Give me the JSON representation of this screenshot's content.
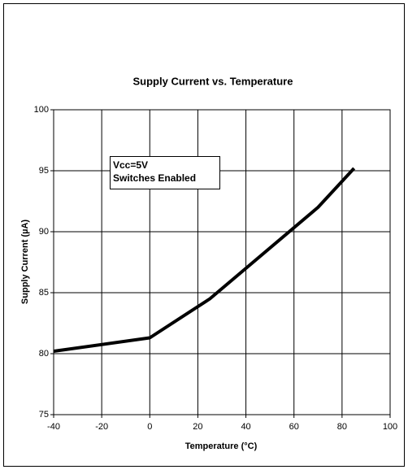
{
  "chart_data": {
    "type": "line",
    "title": "Supply Current vs. Temperature",
    "x_label": "Temperature (°C)",
    "y_label": "Supply Current (µA)",
    "annotation": [
      "Vcc=5V",
      "Switches Enabled"
    ],
    "x": [
      -40,
      0,
      25,
      70,
      85
    ],
    "series": [
      {
        "name": "Supply Current",
        "color": "#000000",
        "values": [
          80.2,
          81.3,
          84.5,
          92,
          95.2
        ]
      }
    ],
    "xlim": [
      -40,
      100
    ],
    "xticks": [
      -40,
      -20,
      0,
      20,
      40,
      60,
      80,
      100
    ],
    "ylim": [
      75,
      100
    ],
    "yticks": [
      75,
      80,
      85,
      90,
      95,
      100
    ],
    "grid": true
  }
}
